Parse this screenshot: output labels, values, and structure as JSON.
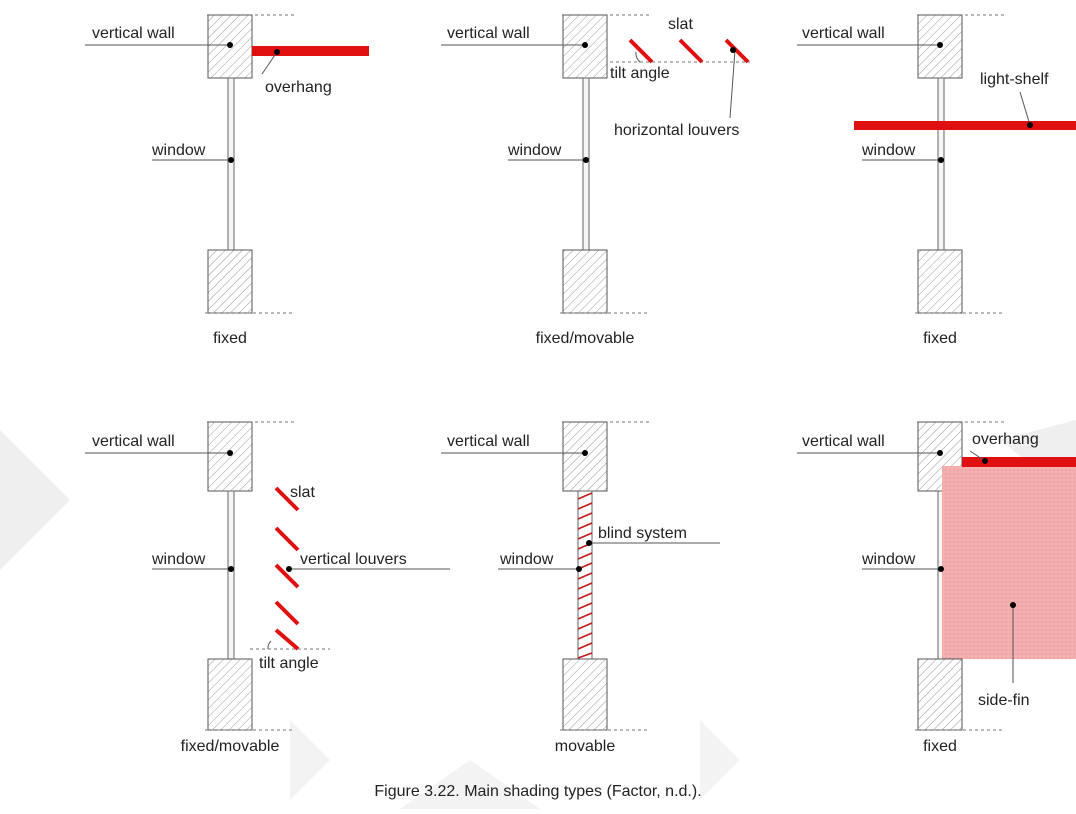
{
  "panels": {
    "p1": {
      "wall": "vertical wall",
      "element": "overhang",
      "window": "window",
      "type": "fixed"
    },
    "p2": {
      "wall": "vertical wall",
      "slat": "slat",
      "tilt": "tilt angle",
      "element": "horizontal louvers",
      "window": "window",
      "type": "fixed/movable"
    },
    "p3": {
      "wall": "vertical wall",
      "element": "light-shelf",
      "window": "window",
      "type": "fixed"
    },
    "p4": {
      "wall": "vertical wall",
      "slat": "slat",
      "element": "vertical louvers",
      "tilt": "tilt angle",
      "window": "window",
      "type": "fixed/movable"
    },
    "p5": {
      "wall": "vertical wall",
      "element": "blind system",
      "window": "window",
      "type": "movable"
    },
    "p6": {
      "wall": "vertical wall",
      "overhang": "overhang",
      "element": "side-fin",
      "window": "window",
      "type": "fixed"
    }
  },
  "caption": {
    "label": "Figure 3.22.",
    "text": " Main shading types  (Factor, n.d.)."
  },
  "colors": {
    "red": "#e01010",
    "fin_fill": "#f4b0b0",
    "watermark": "#efefef"
  }
}
